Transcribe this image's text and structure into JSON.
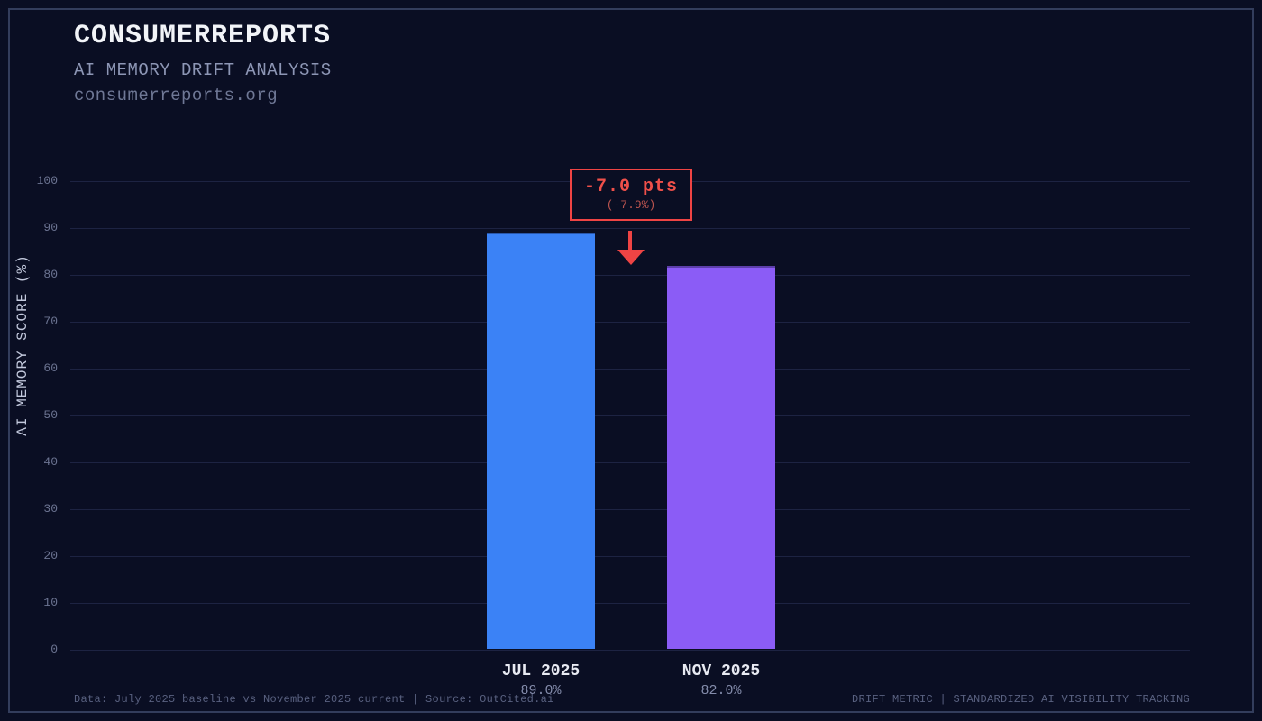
{
  "chart_data": {
    "type": "bar",
    "title": "CONSUMERREPORTS",
    "subtitle": "AI MEMORY DRIFT ANALYSIS",
    "source_url": "consumerreports.org",
    "ylabel": "AI MEMORY SCORE (%)",
    "ylim": [
      0,
      100
    ],
    "yticks": [
      0,
      10,
      20,
      30,
      40,
      50,
      60,
      70,
      80,
      90,
      100
    ],
    "grid": true,
    "legend": "none",
    "categories": [
      "JUL 2025",
      "NOV 2025"
    ],
    "values": [
      89.0,
      82.0
    ],
    "value_labels": [
      "89.0%",
      "82.0%"
    ],
    "bar_colors": [
      "#3b82f6",
      "#8b5cf6"
    ],
    "annotation": {
      "delta": "-7.0 pts",
      "percent": "(-7.9%)",
      "accent_color": "#ef4444"
    },
    "footer_left": "Data: July 2025 baseline vs November 2025 current | Source: OutCited.ai",
    "footer_right": "DRIFT METRIC | STANDARDIZED AI VISIBILITY TRACKING"
  },
  "colors": {
    "background": "#0a0e23",
    "frame_border": "#333d5c",
    "gridline": "#1d2342",
    "title_text": "#f2f4f8",
    "muted_text": "#8d96b5",
    "tick_text": "#6c7492",
    "footer_text": "#596180"
  }
}
